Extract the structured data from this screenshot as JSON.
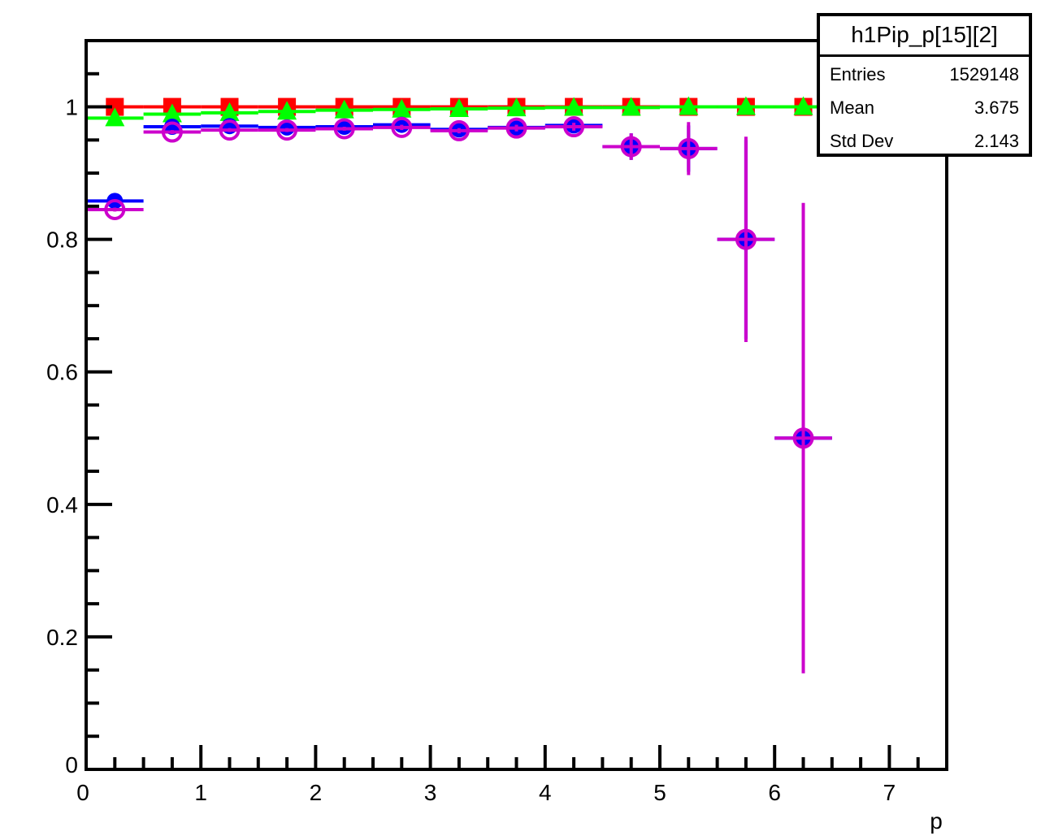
{
  "chart_data": {
    "type": "scatter",
    "xlabel": "p",
    "ylabel": "",
    "xlim": [
      0,
      7.5
    ],
    "ylim": [
      0,
      1.1
    ],
    "x_ticks": [
      "0",
      "1",
      "2",
      "3",
      "4",
      "5",
      "6",
      "7"
    ],
    "y_ticks": [
      "0",
      "0.2",
      "0.4",
      "0.6",
      "0.8",
      "1"
    ],
    "grid": false,
    "series": [
      {
        "marker": "square",
        "color": "#ff0000",
        "x": [
          0.25,
          0.75,
          1.25,
          1.75,
          2.25,
          2.75,
          3.25,
          3.75,
          4.25,
          4.75,
          5.25,
          5.75,
          6.25,
          6.75,
          7.25
        ],
        "y": [
          1.0,
          1.0,
          1.0,
          1.0,
          1.0,
          1.0,
          1.0,
          1.0,
          1.0,
          1.0,
          1.0,
          1.0,
          1.0,
          1.0,
          1.0
        ],
        "yerr": [
          0,
          0,
          0,
          0,
          0,
          0,
          0,
          0,
          0,
          0,
          0,
          0,
          0,
          0,
          0
        ]
      },
      {
        "marker": "triangle",
        "color": "#00ff00",
        "x": [
          0.25,
          0.75,
          1.25,
          1.75,
          2.25,
          2.75,
          3.25,
          3.75,
          4.25,
          4.75,
          5.25,
          5.75,
          6.25,
          6.75,
          7.25
        ],
        "y": [
          0.983,
          0.989,
          0.991,
          0.993,
          0.995,
          0.996,
          0.997,
          0.998,
          0.999,
          0.999,
          1.0,
          1.0,
          1.0,
          1.0,
          1.0
        ],
        "yerr": [
          0,
          0,
          0,
          0,
          0,
          0,
          0,
          0,
          0,
          0,
          0,
          0,
          0,
          0,
          0
        ]
      },
      {
        "marker": "filled-circle",
        "color": "#0000ff",
        "x": [
          0.25,
          0.75,
          1.25,
          1.75,
          2.25,
          2.75,
          3.25,
          3.75,
          4.25,
          4.75,
          5.25,
          5.75,
          6.25
        ],
        "y": [
          0.858,
          0.97,
          0.971,
          0.969,
          0.97,
          0.973,
          0.966,
          0.969,
          0.972,
          0.94,
          0.937,
          0.8,
          0.5
        ],
        "yerr": [
          0.003,
          0.003,
          0.003,
          0.003,
          0.003,
          0.004,
          0.004,
          0.005,
          0.006,
          0.02,
          0.035,
          0.15,
          0.3
        ]
      },
      {
        "marker": "open-circle",
        "color": "#cc00cc",
        "x": [
          0.25,
          0.75,
          1.25,
          1.75,
          2.25,
          2.75,
          3.25,
          3.75,
          4.25,
          4.75,
          5.25,
          5.75,
          6.25
        ],
        "y": [
          0.845,
          0.962,
          0.965,
          0.965,
          0.967,
          0.969,
          0.964,
          0.968,
          0.97,
          0.94,
          0.937,
          0.8,
          0.5
        ],
        "yerr": [
          0.003,
          0.003,
          0.003,
          0.003,
          0.003,
          0.004,
          0.004,
          0.005,
          0.006,
          0.02,
          0.04,
          0.155,
          0.355
        ]
      }
    ]
  },
  "stats": {
    "title": "h1Pip_p[15][2]",
    "rows": [
      {
        "label": "Entries",
        "value": "1529148"
      },
      {
        "label": "Mean",
        "value": "3.675"
      },
      {
        "label": "Std Dev",
        "value": "2.143"
      }
    ]
  }
}
